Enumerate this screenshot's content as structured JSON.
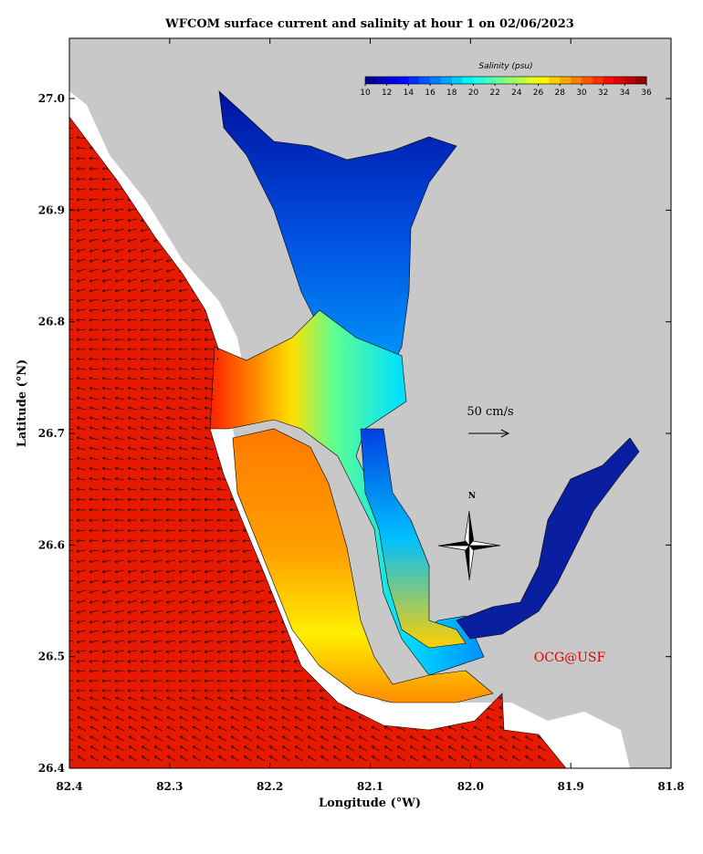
{
  "map": {
    "title": "WFCOM surface current and salinity at hour 1 on 02/06/2023",
    "xlabel": "Longitude (°W)",
    "ylabel": "Latitude (°N)",
    "xlim": [
      82.4,
      81.8
    ],
    "ylim": [
      26.4,
      27.054
    ],
    "xticks": [
      82.4,
      82.3,
      82.2,
      82.1,
      {
        "value": 82,
        "label": "82.0"
      },
      81.9,
      81.8
    ],
    "yticks": [
      26.4,
      26.5,
      26.6,
      26.7,
      26.8,
      26.9,
      {
        "value": 27,
        "label": "27.0"
      }
    ],
    "colorbar": {
      "title": "Salinity (psu)",
      "lim": [
        10,
        36
      ],
      "colormap": "jet",
      "ticks": [
        10,
        12,
        14,
        16,
        18,
        20,
        22,
        24,
        26,
        28,
        30,
        32,
        34,
        36
      ]
    },
    "scale_label": "50 cm/s",
    "north": "N",
    "credit": "OCG@USF"
  }
}
